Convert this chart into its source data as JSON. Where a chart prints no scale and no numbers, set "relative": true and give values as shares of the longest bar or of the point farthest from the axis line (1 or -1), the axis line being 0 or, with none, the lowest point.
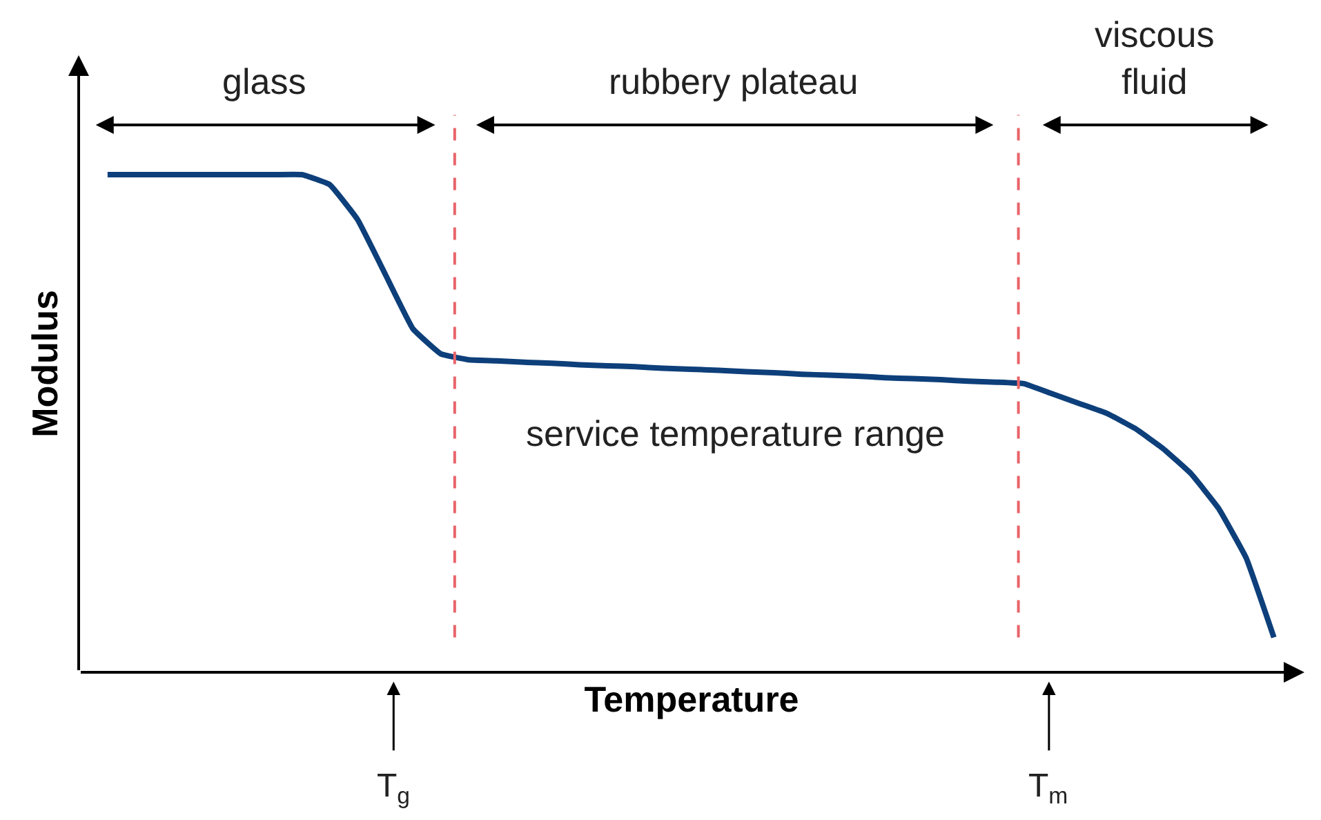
{
  "chart_data": {
    "type": "line",
    "relative": true,
    "xlabel": "Temperature",
    "ylabel": "Modulus",
    "tick_labels": false,
    "marker": "none",
    "line_style": "solid",
    "categories": [
      null,
      null,
      null,
      null,
      null,
      null,
      null,
      null,
      null,
      null,
      null,
      null,
      null,
      null,
      null,
      null,
      null,
      null,
      null,
      null,
      null,
      null,
      null,
      null,
      null,
      null,
      null,
      null,
      null,
      null,
      null,
      null,
      null,
      null,
      null,
      null,
      null,
      null,
      null,
      null,
      null,
      null,
      null
    ],
    "series": [
      {
        "color": "#0d3f7a",
        "values": [
          1,
          1,
          1,
          1,
          1,
          1,
          1,
          1,
          0.98,
          0.91,
          0.8,
          0.69,
          0.64,
          0.628,
          0.626,
          0.623,
          0.621,
          0.618,
          0.616,
          0.614,
          0.611,
          0.609,
          0.607,
          0.604,
          0.602,
          0.599,
          0.597,
          0.595,
          0.592,
          0.59,
          0.588,
          0.585,
          0.583,
          0.58,
          0.56,
          0.54,
          0.52,
          0.49,
          0.45,
          0.4,
          0.33,
          0.23,
          0.07
        ]
      }
    ],
    "annotations": [
      "glass",
      "rubbery plateau",
      "viscous\nfluid",
      "service temperature range",
      "T$_{g}$",
      "T$_{m}$"
    ]
  }
}
